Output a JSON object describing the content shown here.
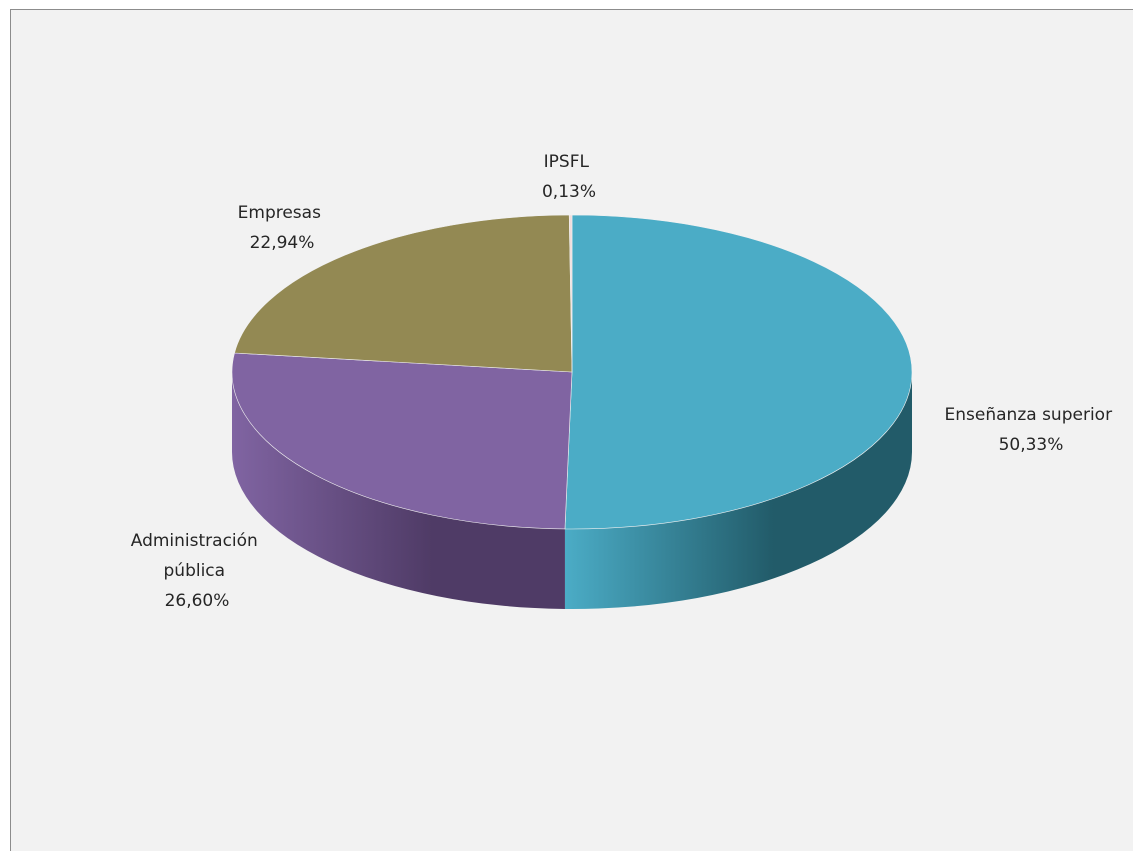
{
  "chart_data": {
    "type": "pie",
    "three_d": true,
    "slices": [
      {
        "label_lines": [
          "Enseñanza superior"
        ],
        "value_text": "50,33%",
        "value": 50.33,
        "color": "#4bacc6",
        "side_color": "#225b69"
      },
      {
        "label_lines": [
          "Administración",
          "pública"
        ],
        "value_text": "26,60%",
        "value": 26.6,
        "color": "#8064a2",
        "side_color": "#4f3b66"
      },
      {
        "label_lines": [
          "Empresas"
        ],
        "value_text": "22,94%",
        "value": 22.94,
        "color": "#938953",
        "side_color": "#5c5532"
      },
      {
        "label_lines": [
          "IPSFL"
        ],
        "value_text": "0,13%",
        "value": 0.13,
        "color": "#f2dcdb",
        "side_color": "#a89594"
      }
    ],
    "legend": "none"
  }
}
